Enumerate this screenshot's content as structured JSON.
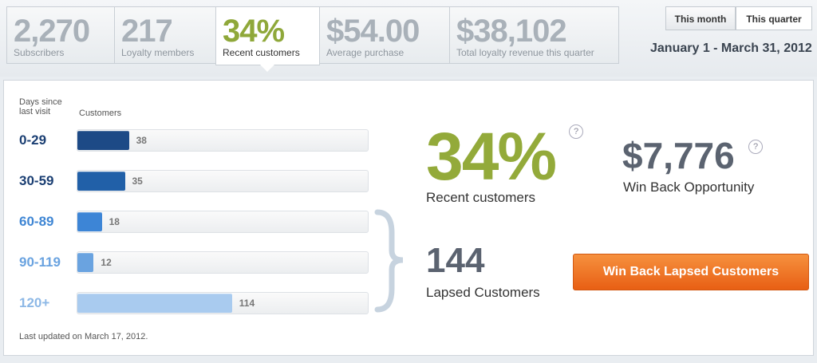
{
  "stats": [
    {
      "value": "2,270",
      "label": "Subscribers"
    },
    {
      "value": "217",
      "label": "Loyalty members"
    },
    {
      "value": "34%",
      "label": "Recent customers"
    },
    {
      "value": "$54.00",
      "label": "Average purchase"
    },
    {
      "value": "$38,102",
      "label": "Total loyalty revenue this quarter"
    }
  ],
  "period_toggle": [
    "This month",
    "This quarter"
  ],
  "date_range": "January 1 - March 31, 2012",
  "chart_data": {
    "type": "bar",
    "orientation": "horizontal",
    "category_header": "Days since last visit",
    "value_header": "Customers",
    "categories": [
      "0-29",
      "30-59",
      "60-89",
      "90-119",
      "120+"
    ],
    "values": [
      38,
      35,
      18,
      12,
      114
    ],
    "colors": [
      "#1d4a86",
      "#2160a8",
      "#3d85d6",
      "#6aa3e0",
      "#a9cbef"
    ],
    "label_colors": [
      "#1b3f73",
      "#1b3f73",
      "#3f86d4",
      "#6aa3e0",
      "#8db8e6"
    ]
  },
  "recent": {
    "value": "34%",
    "label": "Recent customers"
  },
  "win_back": {
    "value": "$7,776",
    "label": "Win Back Opportunity"
  },
  "lapsed": {
    "value": "144",
    "label": "Lapsed Customers"
  },
  "help_icon": "?",
  "button": "Win Back Lapsed Customers",
  "footer": "Last updated on March 17, 2012."
}
